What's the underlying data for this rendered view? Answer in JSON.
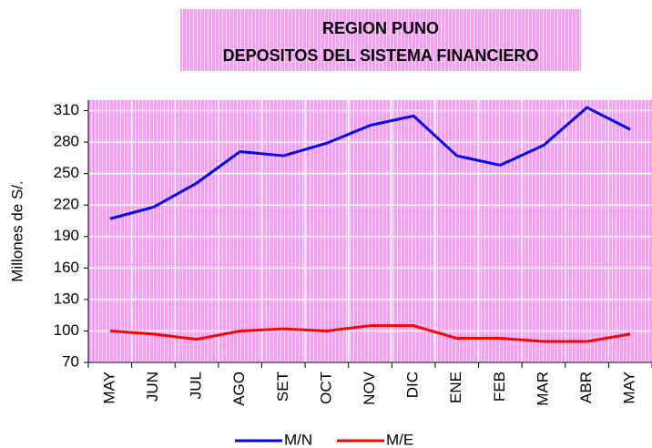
{
  "chart_data": {
    "type": "line",
    "title": "REGION PUNO",
    "subtitle": "DEPOSITOS DEL SISTEMA FINANCIERO",
    "y_label": "Millones de S/.",
    "categories": [
      "MAY",
      "JUN",
      "JUL",
      "AGO",
      "SET",
      "OCT",
      "NOV",
      "DIC",
      "ENE",
      "FEB",
      "MAR",
      "ABR",
      "MAY"
    ],
    "series": [
      {
        "name": "M/N",
        "color": "#0000ff",
        "values": [
          207,
          218,
          241,
          271,
          267,
          279,
          296,
          305,
          267,
          258,
          277,
          313,
          292
        ]
      },
      {
        "name": "M/E",
        "color": "#ff0000",
        "values": [
          100,
          97,
          92,
          100,
          102,
          100,
          105,
          105,
          93,
          93,
          90,
          90,
          97
        ]
      }
    ],
    "ylim": [
      70,
      320
    ],
    "yticks": [
      70,
      100,
      130,
      160,
      190,
      220,
      250,
      280,
      310
    ],
    "grid": true,
    "legend": "bottom"
  }
}
